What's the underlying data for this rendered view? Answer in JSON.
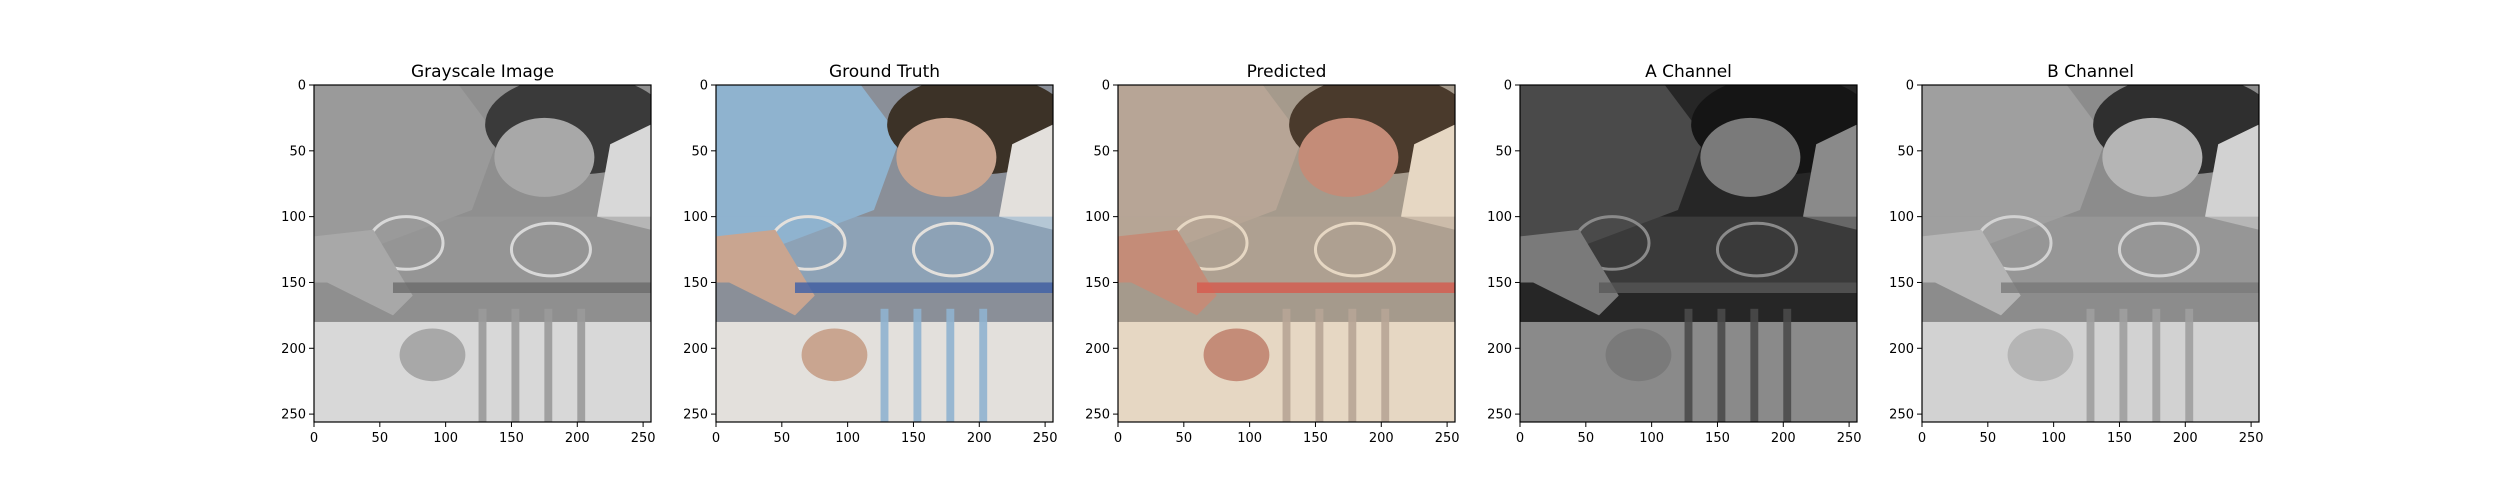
{
  "figure": {
    "panels": [
      {
        "id": "grayscale",
        "title": "Grayscale Image",
        "palette": {
          "bg": "#8f8f8f",
          "dark": "#3a3a3a",
          "mid": "#9a9a9a",
          "light": "#d8d8d8",
          "skin": "#a8a8a8",
          "accent": "#6c6c6c"
        }
      },
      {
        "id": "ground-truth",
        "title": "Ground Truth",
        "palette": {
          "bg": "#8a8f98",
          "dark": "#3c3227",
          "mid": "#8fb3cf",
          "light": "#e3e0dc",
          "skin": "#c9a590",
          "accent": "#3d5fa8"
        }
      },
      {
        "id": "predicted",
        "title": "Predicted",
        "palette": {
          "bg": "#a59a8c",
          "dark": "#4a3a2c",
          "mid": "#b7a596",
          "light": "#e6d7c3",
          "skin": "#c48c78",
          "accent": "#d75a4e"
        }
      },
      {
        "id": "a-channel",
        "title": "A Channel",
        "palette": {
          "bg": "#262626",
          "dark": "#151515",
          "mid": "#4a4a4a",
          "light": "#8a8a8a",
          "skin": "#7a7a7a",
          "accent": "#5a5a5a"
        }
      },
      {
        "id": "b-channel",
        "title": "B Channel",
        "palette": {
          "bg": "#8c8c8c",
          "dark": "#2f2f2f",
          "mid": "#9f9f9f",
          "light": "#d2d2d2",
          "skin": "#b5b5b5",
          "accent": "#7a7a7a"
        }
      }
    ],
    "x_ticks": [
      "0",
      "50",
      "100",
      "150",
      "200",
      "250"
    ],
    "y_ticks": [
      "0",
      "50",
      "100",
      "150",
      "200",
      "250"
    ]
  }
}
